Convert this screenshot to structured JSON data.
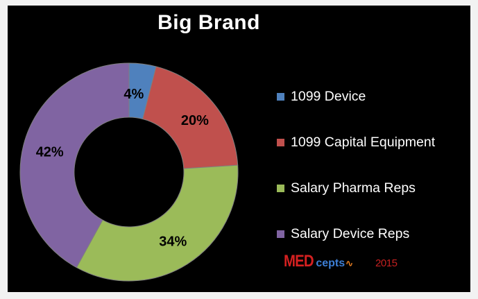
{
  "chart_data": {
    "type": "pie",
    "donut": true,
    "title": "Big Brand",
    "categories": [
      "1099 Device",
      "1099 Capital Equipment",
      "Salary Pharma Reps",
      "Salary Device Reps"
    ],
    "values": [
      4,
      20,
      34,
      42
    ],
    "value_labels": [
      "4%",
      "20%",
      "34%",
      "42%"
    ],
    "colors": [
      "#4f81bd",
      "#c0504d",
      "#9bbb59",
      "#8064a2"
    ],
    "legend_position": "right"
  },
  "logo": {
    "brand_prefix": "MED",
    "brand_suffix": "cepts",
    "year": "2015"
  }
}
